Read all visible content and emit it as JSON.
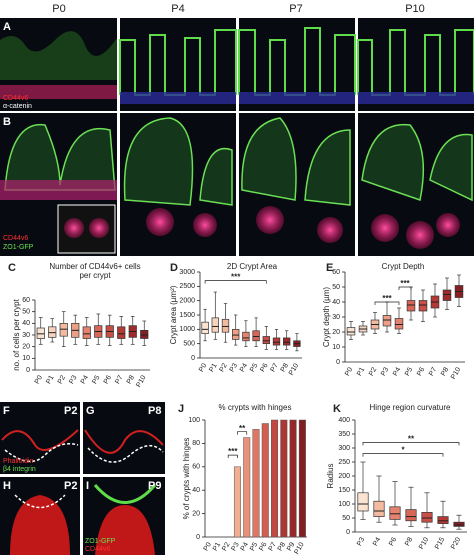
{
  "figure": {
    "column_labels": [
      "P0",
      "P4",
      "P7",
      "P10"
    ],
    "panel_labels": [
      "A",
      "B",
      "F",
      "G",
      "H",
      "I"
    ],
    "stains_a": [
      "CD44v6",
      "α-catenin"
    ],
    "stains_b": [
      "CD44v6",
      "ZO1-GFP"
    ],
    "stains_f": [
      "Phalloidin",
      "β4 integrin"
    ],
    "stains_h": [
      "ZO1-GFP",
      "CD44v6"
    ],
    "insets": [
      "P2",
      "P8",
      "P2",
      "P9"
    ]
  },
  "chart_data": [
    {
      "type": "box",
      "panel": "C",
      "title": "Number of CD44v6+ cells per crypt",
      "y_label": "no. of cells per crypt",
      "categories": [
        "P0",
        "P1",
        "P2",
        "P3",
        "P4",
        "P5",
        "P6",
        "P7",
        "P8",
        "P10"
      ],
      "whisker_low": [
        22,
        24,
        20,
        22,
        21,
        22,
        21,
        22,
        22,
        21
      ],
      "q1": [
        27,
        28,
        29,
        28,
        27,
        28,
        28,
        27,
        28,
        27
      ],
      "median": [
        31,
        32,
        35,
        34,
        31,
        33,
        33,
        31,
        33,
        30
      ],
      "q3": [
        36,
        37,
        40,
        40,
        37,
        38,
        38,
        37,
        38,
        34
      ],
      "whisker_high": [
        45,
        44,
        50,
        47,
        45,
        48,
        47,
        46,
        46,
        42
      ],
      "colors": [
        "#fbe3d2",
        "#f8d3bd",
        "#f2bba0",
        "#ec9f85",
        "#e4826d",
        "#d86657",
        "#c94e45",
        "#b53a36",
        "#9e2a2a",
        "#861f22"
      ],
      "ylim": [
        0,
        60
      ],
      "yticks": [
        0,
        10,
        20,
        30,
        40,
        50,
        60
      ],
      "annotations": []
    },
    {
      "type": "box",
      "panel": "D",
      "title": "2D Crypt Area",
      "y_label": "Crypt area (µm²)",
      "categories": [
        "P0",
        "P1",
        "P2",
        "P3",
        "P4",
        "P5",
        "P6",
        "P7",
        "P8",
        "P10"
      ],
      "whisker_low": [
        600,
        650,
        550,
        450,
        400,
        400,
        300,
        300,
        300,
        250
      ],
      "q1": [
        850,
        900,
        900,
        650,
        600,
        600,
        500,
        450,
        450,
        400
      ],
      "median": [
        1000,
        1100,
        1100,
        800,
        700,
        750,
        600,
        550,
        550,
        500
      ],
      "q3": [
        1250,
        1400,
        1350,
        1000,
        900,
        950,
        750,
        700,
        700,
        600
      ],
      "whisker_high": [
        1700,
        2300,
        1900,
        1500,
        1300,
        1400,
        1100,
        1000,
        950,
        850
      ],
      "colors": [
        "#fbe3d2",
        "#f8d3bd",
        "#f2bba0",
        "#ec9f85",
        "#e4826d",
        "#d86657",
        "#c94e45",
        "#b53a36",
        "#9e2a2a",
        "#861f22"
      ],
      "ylim": [
        0,
        3000
      ],
      "yticks": [
        0,
        500,
        1000,
        1500,
        2000,
        2500,
        3000
      ],
      "annotations": [
        "***"
      ]
    },
    {
      "type": "box",
      "panel": "E",
      "title": "Crypt Depth",
      "y_label": "Crypt depth (µm)",
      "categories": [
        "P0",
        "P1",
        "P2",
        "P3",
        "P4",
        "P5",
        "P6",
        "P7",
        "P8",
        "P10"
      ],
      "whisker_low": [
        15,
        18,
        19,
        20,
        19,
        28,
        27,
        30,
        35,
        37
      ],
      "q1": [
        18,
        20,
        22,
        24,
        22,
        34,
        34,
        36,
        41,
        43
      ],
      "median": [
        20,
        22,
        25,
        28,
        25,
        38,
        38,
        40,
        45,
        47
      ],
      "q3": [
        23,
        24,
        28,
        31,
        29,
        41,
        41,
        44,
        48,
        51
      ],
      "whisker_high": [
        27,
        27,
        33,
        40,
        36,
        50,
        48,
        52,
        56,
        58
      ],
      "colors": [
        "#fbe3d2",
        "#f8d3bd",
        "#f2bba0",
        "#ec9f85",
        "#e4826d",
        "#d86657",
        "#c94e45",
        "#b53a36",
        "#9e2a2a",
        "#861f22"
      ],
      "ylim": [
        0,
        60
      ],
      "yticks": [
        0,
        10,
        20,
        30,
        40,
        50,
        60
      ],
      "annotations": [
        "***",
        "***"
      ]
    },
    {
      "type": "bar",
      "panel": "J",
      "title": "% crypts with hinges",
      "y_label": "% of crypts with hinges",
      "categories": [
        "P0",
        "P1",
        "P2",
        "P3",
        "P4",
        "P5",
        "P6",
        "P7",
        "P8",
        "P9",
        "P10"
      ],
      "values": [
        0,
        0,
        0,
        60,
        85,
        92,
        97,
        100,
        100,
        100,
        100
      ],
      "colors": [
        "#fbe3d2",
        "#f8d3bd",
        "#f5c6ad",
        "#f0ae92",
        "#e9927a",
        "#df7664",
        "#d25d51",
        "#c34841",
        "#ae3635",
        "#97282a",
        "#801e21"
      ],
      "ylim": [
        0,
        100
      ],
      "yticks": [
        0,
        20,
        40,
        60,
        80,
        100
      ],
      "annotations": [
        "***",
        "**"
      ]
    },
    {
      "type": "box",
      "panel": "K",
      "title": "Hinge region curvature",
      "y_label": "Radius",
      "categories": [
        "P3",
        "P4",
        "P6",
        "P8",
        "P10",
        "P15",
        "P20"
      ],
      "whisker_low": [
        45,
        35,
        25,
        20,
        15,
        15,
        10
      ],
      "q1": [
        75,
        55,
        45,
        40,
        35,
        30,
        20
      ],
      "median": [
        100,
        75,
        65,
        55,
        50,
        40,
        25
      ],
      "q3": [
        140,
        110,
        90,
        80,
        70,
        55,
        35
      ],
      "whisker_high": [
        250,
        200,
        180,
        160,
        140,
        110,
        60
      ],
      "colors": [
        "#fbe3d2",
        "#f2bba0",
        "#e4826d",
        "#d86657",
        "#c94e45",
        "#b53a36",
        "#861f22"
      ],
      "ylim": [
        0,
        400
      ],
      "yticks": [
        0,
        50,
        100,
        150,
        200,
        250,
        300,
        350,
        400
      ],
      "annotations": [
        "*",
        "**"
      ]
    }
  ]
}
